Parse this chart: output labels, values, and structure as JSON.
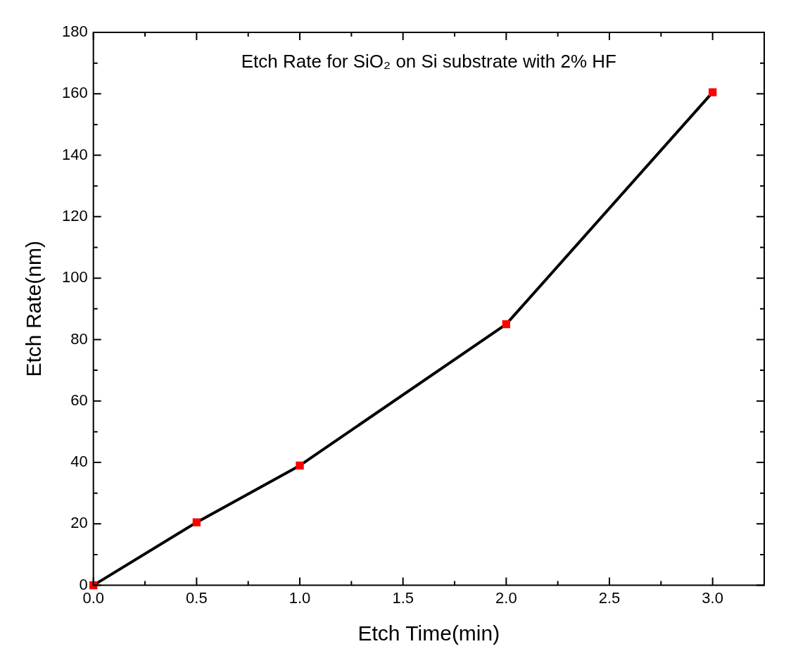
{
  "chart_data": {
    "type": "line",
    "title": "Etch Rate for SiO₂ on Si substrate with 2% HF",
    "xlabel": "Etch Time(min)",
    "ylabel": "Etch Rate(nm)",
    "x": [
      0,
      0.5,
      1,
      2,
      3
    ],
    "series": [
      {
        "color": "#000000",
        "colors": [
          "#ff0000",
          "#ff0000",
          "#ff0000",
          "#ff0000",
          "#ff0000"
        ],
        "values": [
          0,
          20.5,
          39,
          85,
          160.5
        ]
      }
    ],
    "marker": "square",
    "line_style": "solid",
    "grid": false,
    "legend": false,
    "xlim": [
      0,
      3.25
    ],
    "xticks": [
      {
        "value": 0,
        "label": "0.0"
      },
      {
        "value": 0.25,
        "label": null
      },
      {
        "value": 0.5,
        "label": "0.5"
      },
      {
        "value": 0.75,
        "label": null
      },
      {
        "value": 1,
        "label": "1.0"
      },
      {
        "value": 1.25,
        "label": null
      },
      {
        "value": 1.5,
        "label": "1.5"
      },
      {
        "value": 1.75,
        "label": null
      },
      {
        "value": 2,
        "label": "2.0"
      },
      {
        "value": 2.25,
        "label": null
      },
      {
        "value": 2.5,
        "label": "2.5"
      },
      {
        "value": 2.75,
        "label": null
      },
      {
        "value": 3,
        "label": "3.0"
      },
      {
        "value": 3.25,
        "label": null
      }
    ],
    "ylim": [
      0,
      180
    ],
    "yticks": [
      0,
      {
        "value": 10,
        "label": null
      },
      20,
      {
        "value": 30,
        "label": null
      },
      40,
      {
        "value": 50,
        "label": null
      },
      60,
      {
        "value": 70,
        "label": null
      },
      80,
      {
        "value": 90,
        "label": null
      },
      100,
      {
        "value": 110,
        "label": null
      },
      120,
      {
        "value": 130,
        "label": null
      },
      140,
      {
        "value": 150,
        "label": null
      },
      160,
      {
        "value": 170,
        "label": null
      },
      180
    ]
  }
}
